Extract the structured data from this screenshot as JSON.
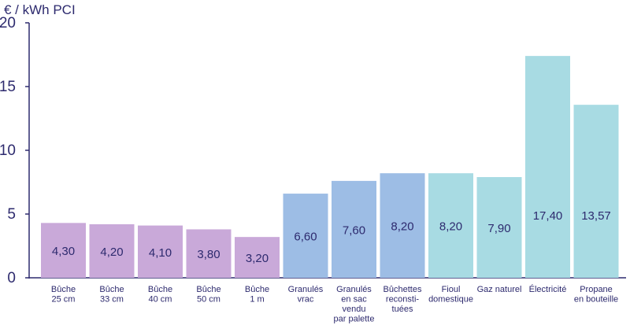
{
  "chart_data": {
    "type": "bar",
    "ylabel": "€ / kWh PCI",
    "ylim": [
      0,
      20
    ],
    "yticks": [
      "0",
      "5",
      "10",
      "15",
      "20"
    ],
    "grid": false,
    "categories": [
      [
        "Bûche",
        "25 cm"
      ],
      [
        "Bûche",
        "33 cm"
      ],
      [
        "Bûche",
        "40 cm"
      ],
      [
        "Bûche",
        "50 cm"
      ],
      [
        "Bûche",
        "1 m"
      ],
      [
        "Granulés",
        "vrac"
      ],
      [
        "Granulés",
        "en sac",
        "vendu",
        "par palette"
      ],
      [
        "Bûchettes",
        "reconsti-",
        "tuées"
      ],
      [
        "Fioul",
        "domestique"
      ],
      [
        "Gaz naturel"
      ],
      [
        "Électricité"
      ],
      [
        "Propane",
        "en bouteille"
      ]
    ],
    "values": [
      4.3,
      4.2,
      4.1,
      3.8,
      3.2,
      6.6,
      7.6,
      8.2,
      8.2,
      7.9,
      17.4,
      13.57
    ],
    "value_labels": [
      "4,30",
      "4,20",
      "4,10",
      "3,80",
      "3,20",
      "6,60",
      "7,60",
      "8,20",
      "8,20",
      "7,90",
      "17,40",
      "13,57"
    ],
    "bar_colors": [
      "#c9a9d9",
      "#c9a9d9",
      "#c9a9d9",
      "#c9a9d9",
      "#c9a9d9",
      "#9dbde5",
      "#9dbde5",
      "#9dbde5",
      "#a8dbe3",
      "#a8dbe3",
      "#a8dbe3",
      "#a8dbe3"
    ],
    "axis_color": "#2d2a6e"
  }
}
